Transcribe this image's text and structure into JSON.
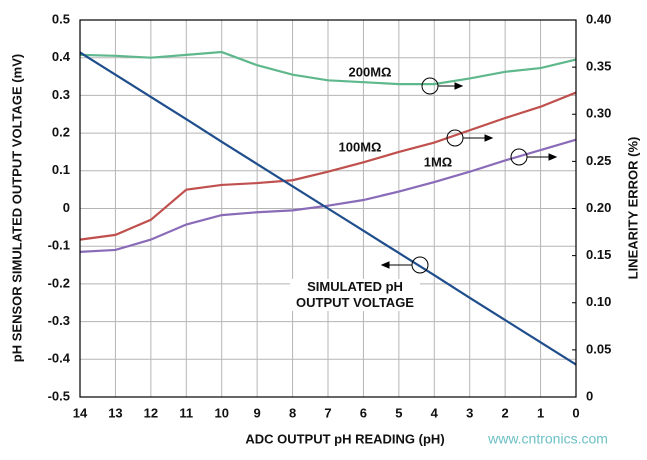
{
  "chart_data": {
    "type": "line",
    "y_label": "pH SENSOR SIMULATED OUTPUT VOLTAGE (mV)",
    "y2_label": "LINEARITY ERROR (%)",
    "x_label": "ADC OUTPUT pH READING (pH)",
    "watermark": "www.cntronics.com",
    "x": [
      14,
      13,
      12,
      11,
      10,
      9,
      8,
      7,
      6,
      5,
      4,
      3,
      2,
      1,
      0
    ],
    "xlim": [
      14,
      0
    ],
    "xticks": [
      14,
      13,
      12,
      11,
      10,
      9,
      8,
      7,
      6,
      5,
      4,
      3,
      2,
      1,
      0
    ],
    "ylim": [
      -0.5,
      0.5
    ],
    "yticks": [
      0.5,
      0.4,
      0.3,
      0.2,
      0.1,
      0,
      -0.1,
      -0.2,
      -0.3,
      -0.4,
      -0.5
    ],
    "y2lim": [
      0,
      0.4
    ],
    "y2ticks": [
      {
        "value": 0.4,
        "label": "0.40"
      },
      0.35,
      {
        "value": 0.3,
        "label": "0.30"
      },
      0.25,
      {
        "value": 0.2,
        "label": "0.20"
      },
      0.15,
      {
        "value": 0.1,
        "label": "0.10"
      },
      0.05,
      0
    ],
    "grid": true,
    "series": [
      {
        "name": "200MΩ",
        "color": "#5fb88c",
        "axis": "y2",
        "values": [
          0.363,
          0.362,
          0.36,
          0.363,
          0.366,
          0.352,
          0.342,
          0.336,
          0.334,
          0.332,
          0.332,
          0.338,
          0.345,
          0.349,
          0.358
        ]
      },
      {
        "name": "100MΩ",
        "color": "#c0504d",
        "axis": "y2",
        "values": [
          0.167,
          0.172,
          0.188,
          0.22,
          0.225,
          0.227,
          0.23,
          0.239,
          0.249,
          0.26,
          0.27,
          0.283,
          0.296,
          0.308,
          0.323
        ]
      },
      {
        "name": "1MΩ",
        "color": "#8a6bb8",
        "axis": "y2",
        "values": [
          0.154,
          0.156,
          0.167,
          0.183,
          0.193,
          0.196,
          0.198,
          0.203,
          0.209,
          0.218,
          0.228,
          0.239,
          0.251,
          0.262,
          0.273
        ]
      },
      {
        "name": "SIMULATED pH OUTPUT VOLTAGE",
        "color": "#1f4e8c",
        "values": [
          0.414,
          0.355,
          0.296,
          0.237,
          0.177,
          0.118,
          0.059,
          0,
          -0.059,
          -0.118,
          -0.177,
          -0.237,
          -0.296,
          -0.355,
          -0.414
        ]
      }
    ]
  }
}
